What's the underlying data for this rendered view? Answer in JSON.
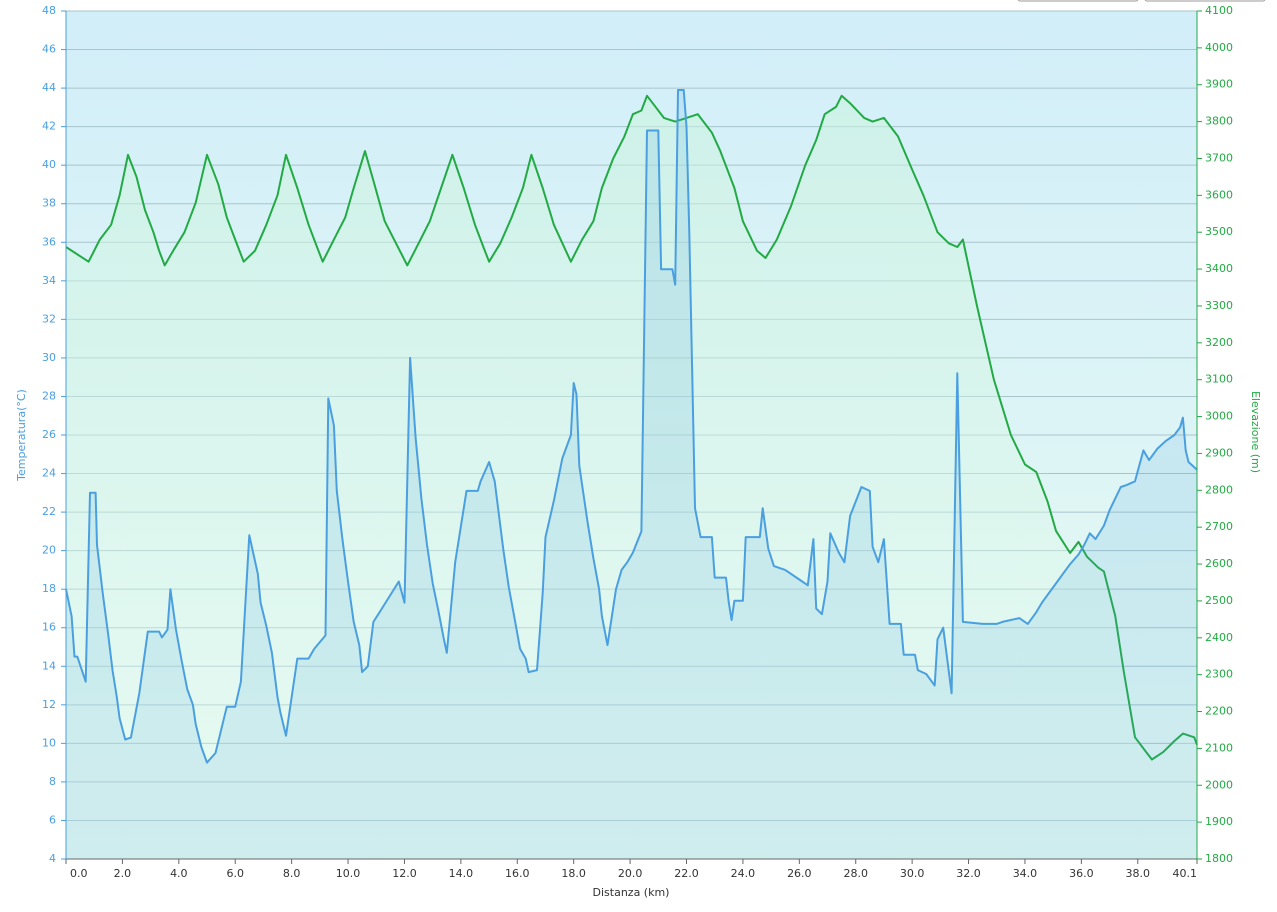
{
  "chart_data": {
    "type": "line",
    "xlabel": "Distanza  (km)",
    "ylabel": "Temperatura(°C)",
    "y2label": "Elevazione (m)",
    "xlim": [
      0,
      40.1
    ],
    "xticks": [
      {
        "value": 0,
        "label": "0.0"
      },
      {
        "value": 2,
        "label": "2.0"
      },
      {
        "value": 4,
        "label": "4.0"
      },
      {
        "value": 6,
        "label": "6.0"
      },
      {
        "value": 8,
        "label": "8.0"
      },
      {
        "value": 10,
        "label": "10.0"
      },
      {
        "value": 12,
        "label": "12.0"
      },
      {
        "value": 14,
        "label": "14.0"
      },
      {
        "value": 16,
        "label": "16.0"
      },
      {
        "value": 18,
        "label": "18.0"
      },
      {
        "value": 20,
        "label": "20.0"
      },
      {
        "value": 22,
        "label": "22.0"
      },
      {
        "value": 24,
        "label": "24.0"
      },
      {
        "value": 26,
        "label": "26.0"
      },
      {
        "value": 28,
        "label": "28.0"
      },
      {
        "value": 30,
        "label": "30.0"
      },
      {
        "value": 32,
        "label": "32.0"
      },
      {
        "value": 34,
        "label": "34.0"
      },
      {
        "value": 36,
        "label": "36.0"
      },
      {
        "value": 38,
        "label": "38.0"
      },
      40.1
    ],
    "ylim": [
      4,
      48
    ],
    "yticks": [
      4,
      6,
      8,
      10,
      12,
      14,
      16,
      18,
      20,
      22,
      24,
      26,
      28,
      30,
      32,
      34,
      36,
      38,
      40,
      42,
      44,
      46,
      48
    ],
    "y2lim": [
      1800,
      4100
    ],
    "y2ticks": [
      1800,
      1900,
      2000,
      2100,
      2200,
      2300,
      2400,
      2500,
      2600,
      2700,
      2800,
      2900,
      3000,
      3100,
      3200,
      3300,
      3400,
      3500,
      3600,
      3700,
      3800,
      3900,
      4000,
      4100
    ],
    "grid": true,
    "series": [
      {
        "name": "Elevazione",
        "axis": "y2",
        "color": "#22aa44",
        "x": [
          0,
          0.8,
          1.2,
          1.6,
          1.9,
          2.2,
          2.5,
          2.8,
          3.1,
          3.3,
          3.5,
          3.8,
          4.2,
          4.6,
          5.0,
          5.4,
          5.7,
          6.0,
          6.3,
          6.7,
          7.1,
          7.5,
          7.8,
          8.2,
          8.6,
          8.9,
          9.1,
          9.5,
          9.9,
          10.2,
          10.6,
          10.9,
          11.3,
          11.7,
          12.1,
          12.5,
          12.9,
          13.3,
          13.7,
          14.1,
          14.5,
          14.8,
          15.0,
          15.4,
          15.8,
          16.2,
          16.5,
          16.9,
          17.3,
          17.6,
          17.9,
          18.3,
          18.7,
          19.0,
          19.4,
          19.8,
          20.1,
          20.4,
          20.6,
          20.8,
          21.2,
          21.6,
          22.0,
          22.4,
          22.9,
          23.2,
          23.7,
          24.0,
          24.5,
          24.8,
          25.2,
          25.7,
          26.2,
          26.6,
          26.9,
          27.3,
          27.5,
          27.8,
          28.3,
          28.6,
          29.0,
          29.5,
          30.0,
          30.4,
          30.9,
          31.3,
          31.6,
          31.8,
          32.3,
          32.9,
          33.5,
          34.0,
          34.4,
          34.8,
          35.1,
          35.6,
          35.9,
          36.2,
          36.6,
          36.8,
          37.2,
          37.5,
          37.9,
          38.3,
          38.5,
          38.9,
          39.3,
          39.6,
          40.0,
          40.1
        ],
        "values": [
          3460,
          3420,
          3480,
          3520,
          3600,
          3710,
          3650,
          3560,
          3500,
          3450,
          3410,
          3450,
          3500,
          3580,
          3710,
          3630,
          3540,
          3480,
          3420,
          3450,
          3520,
          3600,
          3710,
          3620,
          3520,
          3460,
          3420,
          3480,
          3540,
          3620,
          3720,
          3640,
          3530,
          3470,
          3410,
          3470,
          3530,
          3620,
          3710,
          3620,
          3520,
          3460,
          3420,
          3470,
          3540,
          3620,
          3710,
          3620,
          3520,
          3470,
          3420,
          3480,
          3530,
          3620,
          3700,
          3760,
          3820,
          3830,
          3870,
          3850,
          3810,
          3800,
          3810,
          3820,
          3770,
          3720,
          3620,
          3530,
          3450,
          3430,
          3480,
          3570,
          3680,
          3750,
          3820,
          3840,
          3870,
          3850,
          3810,
          3800,
          3810,
          3760,
          3670,
          3600,
          3500,
          3470,
          3460,
          3480,
          3300,
          3100,
          2950,
          2870,
          2850,
          2770,
          2690,
          2630,
          2660,
          2620,
          2590,
          2580,
          2460,
          2310,
          2130,
          2090,
          2070,
          2090,
          2120,
          2140,
          2130,
          2110
        ]
      },
      {
        "name": "Temperatura",
        "axis": "y",
        "color": "#4a9fe0",
        "x": [
          0,
          0.2,
          0.3,
          0.4,
          0.7,
          0.85,
          1.05,
          1.1,
          1.3,
          1.5,
          1.65,
          1.8,
          1.9,
          2.1,
          2.3,
          2.6,
          2.9,
          3.3,
          3.4,
          3.6,
          3.7,
          3.9,
          4.1,
          4.3,
          4.5,
          4.6,
          4.8,
          5.0,
          5.3,
          5.7,
          6.0,
          6.2,
          6.5,
          6.8,
          6.9,
          7.1,
          7.3,
          7.5,
          7.6,
          7.8,
          8.2,
          8.6,
          8.8,
          9.2,
          9.3,
          9.5,
          9.6,
          9.8,
          10.0,
          10.2,
          10.4,
          10.5,
          10.7,
          10.9,
          11.2,
          11.8,
          12.0,
          12.2,
          12.4,
          12.6,
          12.8,
          13.0,
          13.2,
          13.4,
          13.5,
          13.8,
          14.2,
          14.6,
          14.7,
          15.0,
          15.2,
          15.5,
          15.7,
          15.9,
          16.1,
          16.3,
          16.4,
          16.7,
          16.9,
          17.0,
          17.3,
          17.6,
          17.9,
          18.0,
          18.1,
          18.2,
          18.5,
          18.7,
          18.9,
          19.0,
          19.2,
          19.5,
          19.7,
          19.9,
          20.1,
          20.4,
          20.6,
          21.0,
          21.1,
          21.5,
          21.6,
          21.7,
          21.9,
          22.0,
          22.1,
          22.3,
          22.5,
          22.9,
          23.0,
          23.4,
          23.5,
          23.6,
          23.7,
          24.0,
          24.1,
          24.6,
          24.7,
          24.9,
          25.1,
          25.5,
          26.0,
          26.3,
          26.5,
          26.6,
          26.8,
          27.0,
          27.1,
          27.4,
          27.6,
          27.8,
          28.2,
          28.5,
          28.6,
          28.8,
          29.0,
          29.2,
          29.6,
          29.7,
          30.1,
          30.2,
          30.5,
          30.8,
          30.9,
          31.1,
          31.4,
          31.6,
          31.8,
          32.5,
          33.0,
          33.2,
          33.8,
          34.1,
          34.4,
          34.6,
          34.8,
          35.1,
          35.4,
          35.6,
          35.9,
          36.1,
          36.3,
          36.5,
          36.8,
          37.0,
          37.2,
          37.4,
          37.6,
          37.9,
          38.2,
          38.4,
          38.7,
          39.0,
          39.3,
          39.5,
          39.6,
          39.7,
          39.8,
          40.1
        ],
        "values": [
          18,
          16.6,
          14.5,
          14.5,
          13.2,
          23,
          23,
          20.3,
          17.8,
          15.6,
          13.8,
          12.4,
          11.3,
          10.2,
          10.3,
          12.6,
          15.8,
          15.8,
          15.5,
          15.9,
          18,
          15.9,
          14.3,
          12.8,
          12,
          11,
          9.8,
          9,
          9.5,
          11.9,
          11.9,
          13.2,
          20.8,
          18.8,
          17.3,
          16.1,
          14.7,
          12.4,
          11.6,
          10.4,
          14.4,
          14.4,
          14.9,
          15.6,
          27.9,
          26.5,
          23.1,
          20.6,
          18.4,
          16.3,
          15.1,
          13.7,
          14,
          16.3,
          17,
          18.4,
          17.3,
          30,
          25.8,
          22.7,
          20.3,
          18.3,
          16.9,
          15.4,
          14.7,
          19.4,
          23.1,
          23.1,
          23.6,
          24.6,
          23.6,
          20.1,
          18.1,
          16.5,
          14.9,
          14.4,
          13.7,
          13.8,
          17.8,
          20.7,
          22.6,
          24.8,
          26,
          28.7,
          28.1,
          24.4,
          21.4,
          19.6,
          18,
          16.6,
          15.1,
          18,
          19,
          19.4,
          19.9,
          21,
          41.8,
          41.8,
          34.6,
          34.6,
          33.8,
          43.9,
          43.9,
          42,
          36.5,
          22.2,
          20.7,
          20.7,
          18.6,
          18.6,
          17.3,
          16.4,
          17.4,
          17.4,
          20.7,
          20.7,
          22.2,
          20.1,
          19.2,
          19,
          18.5,
          18.2,
          20.6,
          17,
          16.7,
          18.4,
          20.9,
          19.9,
          19.4,
          21.8,
          23.3,
          23.1,
          20.2,
          19.4,
          20.6,
          16.2,
          16.2,
          14.6,
          14.6,
          13.8,
          13.6,
          13,
          15.4,
          16,
          12.6,
          29.2,
          16.3,
          16.2,
          16.2,
          16.3,
          16.5,
          16.2,
          16.8,
          17.3,
          17.7,
          18.3,
          18.9,
          19.3,
          19.8,
          20.3,
          20.9,
          20.6,
          21.3,
          22.1,
          22.7,
          23.3,
          23.4,
          23.6,
          25.2,
          24.7,
          25.3,
          25.7,
          26,
          26.4,
          26.9,
          25.2,
          24.6,
          24.2
        ]
      }
    ]
  }
}
